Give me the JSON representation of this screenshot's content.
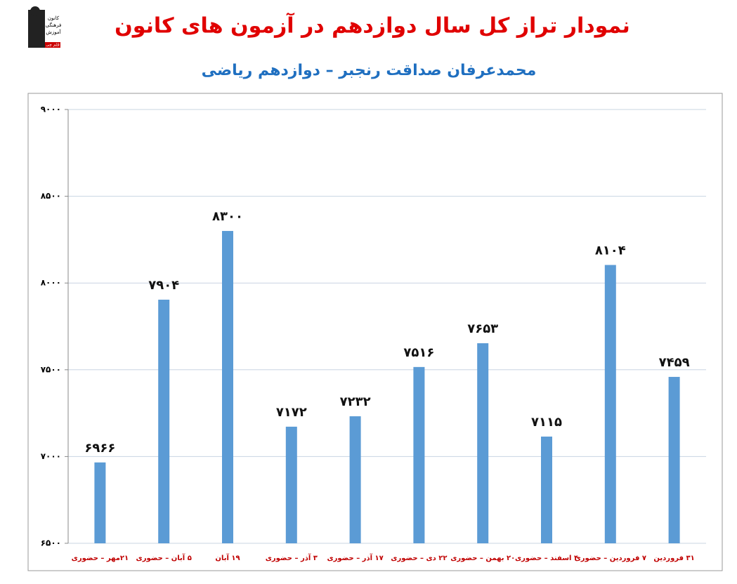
{
  "chart_data": {
    "type": "bar",
    "title": "نمودار تراز کل سال دوازدهم در آزمون های کانون",
    "subtitle": "محمدعرفان صداقت رنجبر – دوازدهم ریاضی",
    "logo_text": [
      "کانون",
      "فرهنگی",
      "آموزش",
      "قلم چی"
    ],
    "categories": [
      "۲۱مهر – حضوری",
      "۵ آبان – حضوری",
      "۱۹ آبان",
      "۳ آذر – حضوری",
      "۱۷ آذر – حضوری",
      "۲۲ دی – حضوری",
      "۲۰ بهمن – حضوری",
      "۴ اسفند – حضوری",
      "۷ فروردین – حضوری",
      "۳۱ فروردین"
    ],
    "values": [
      6966,
      7904,
      8300,
      7172,
      7232,
      7516,
      7653,
      7115,
      8104,
      7459
    ],
    "value_labels": [
      "۶۹۶۶",
      "۷۹۰۴",
      "۸۳۰۰",
      "۷۱۷۲",
      "۷۲۳۲",
      "۷۵۱۶",
      "۷۶۵۳",
      "۷۱۱۵",
      "۸۱۰۴",
      "۷۴۵۹"
    ],
    "color": "#5b9bd5",
    "ylim": [
      6500,
      9000
    ],
    "yticks": [
      {
        "value": 6500,
        "label": "۶۵۰۰"
      },
      {
        "value": 7000,
        "label": "۷۰۰۰"
      },
      {
        "value": 7500,
        "label": "۷۵۰۰"
      },
      {
        "value": 8000,
        "label": "۸۰۰۰"
      },
      {
        "value": 8500,
        "label": "۸۵۰۰"
      },
      {
        "value": 9000,
        "label": "۹۰۰۰"
      }
    ],
    "grid": true
  }
}
